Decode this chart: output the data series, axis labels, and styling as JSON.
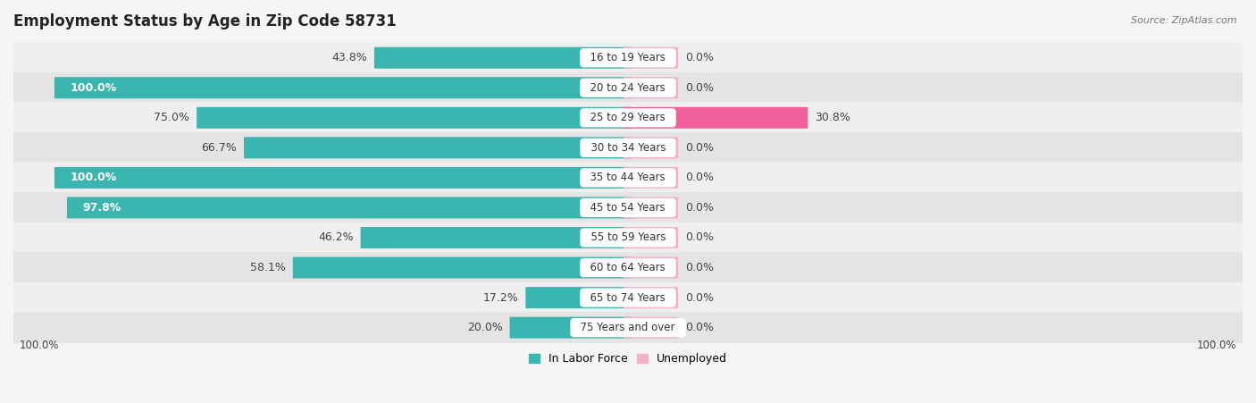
{
  "title": "Employment Status by Age in Zip Code 58731",
  "source": "Source: ZipAtlas.com",
  "categories": [
    "16 to 19 Years",
    "20 to 24 Years",
    "25 to 29 Years",
    "30 to 34 Years",
    "35 to 44 Years",
    "45 to 54 Years",
    "55 to 59 Years",
    "60 to 64 Years",
    "65 to 74 Years",
    "75 Years and over"
  ],
  "in_labor_force": [
    43.8,
    100.0,
    75.0,
    66.7,
    100.0,
    97.8,
    46.2,
    58.1,
    17.2,
    20.0
  ],
  "unemployed": [
    0.0,
    0.0,
    30.8,
    0.0,
    0.0,
    0.0,
    0.0,
    0.0,
    0.0,
    0.0
  ],
  "labor_force_color": "#3ab5b0",
  "unemployed_color": "#f5afc8",
  "unemployed_highlight_color": "#f0609a",
  "row_bg_odd": "#efefef",
  "row_bg_even": "#e4e4e4",
  "title_fontsize": 12,
  "label_fontsize": 9,
  "source_fontsize": 8,
  "axis_label_fontsize": 8.5,
  "legend_labor_label": "In Labor Force",
  "legend_unemployed_label": "Unemployed",
  "x_axis_left_label": "100.0%",
  "x_axis_right_label": "100.0%",
  "zero_bar_width": 0.08,
  "label_threshold": 0.8
}
